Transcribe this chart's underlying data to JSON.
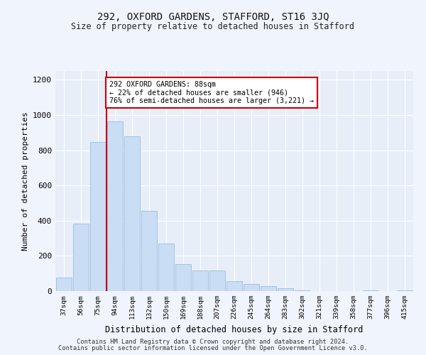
{
  "title1": "292, OXFORD GARDENS, STAFFORD, ST16 3JQ",
  "title2": "Size of property relative to detached houses in Stafford",
  "xlabel": "Distribution of detached houses by size in Stafford",
  "ylabel": "Number of detached properties",
  "categories": [
    "37sqm",
    "56sqm",
    "75sqm",
    "94sqm",
    "113sqm",
    "132sqm",
    "150sqm",
    "169sqm",
    "188sqm",
    "207sqm",
    "226sqm",
    "245sqm",
    "264sqm",
    "283sqm",
    "302sqm",
    "321sqm",
    "339sqm",
    "358sqm",
    "377sqm",
    "396sqm",
    "415sqm"
  ],
  "values": [
    75,
    385,
    845,
    965,
    880,
    455,
    270,
    155,
    115,
    115,
    55,
    40,
    30,
    15,
    5,
    0,
    0,
    0,
    5,
    0,
    5
  ],
  "bar_color": "#c9ddf5",
  "bar_edge_color": "#9bbde0",
  "vline_color": "#cc0000",
  "annotation_text": "292 OXFORD GARDENS: 88sqm\n← 22% of detached houses are smaller (946)\n76% of semi-detached houses are larger (3,221) →",
  "annotation_box_color": "#ffffff",
  "annotation_box_edge": "#cc0000",
  "ylim": [
    0,
    1250
  ],
  "yticks": [
    0,
    200,
    400,
    600,
    800,
    1000,
    1200
  ],
  "footnote1": "Contains HM Land Registry data © Crown copyright and database right 2024.",
  "footnote2": "Contains public sector information licensed under the Open Government Licence v3.0.",
  "fig_bg_color": "#f0f4fc",
  "plot_bg_color": "#e8eef8"
}
